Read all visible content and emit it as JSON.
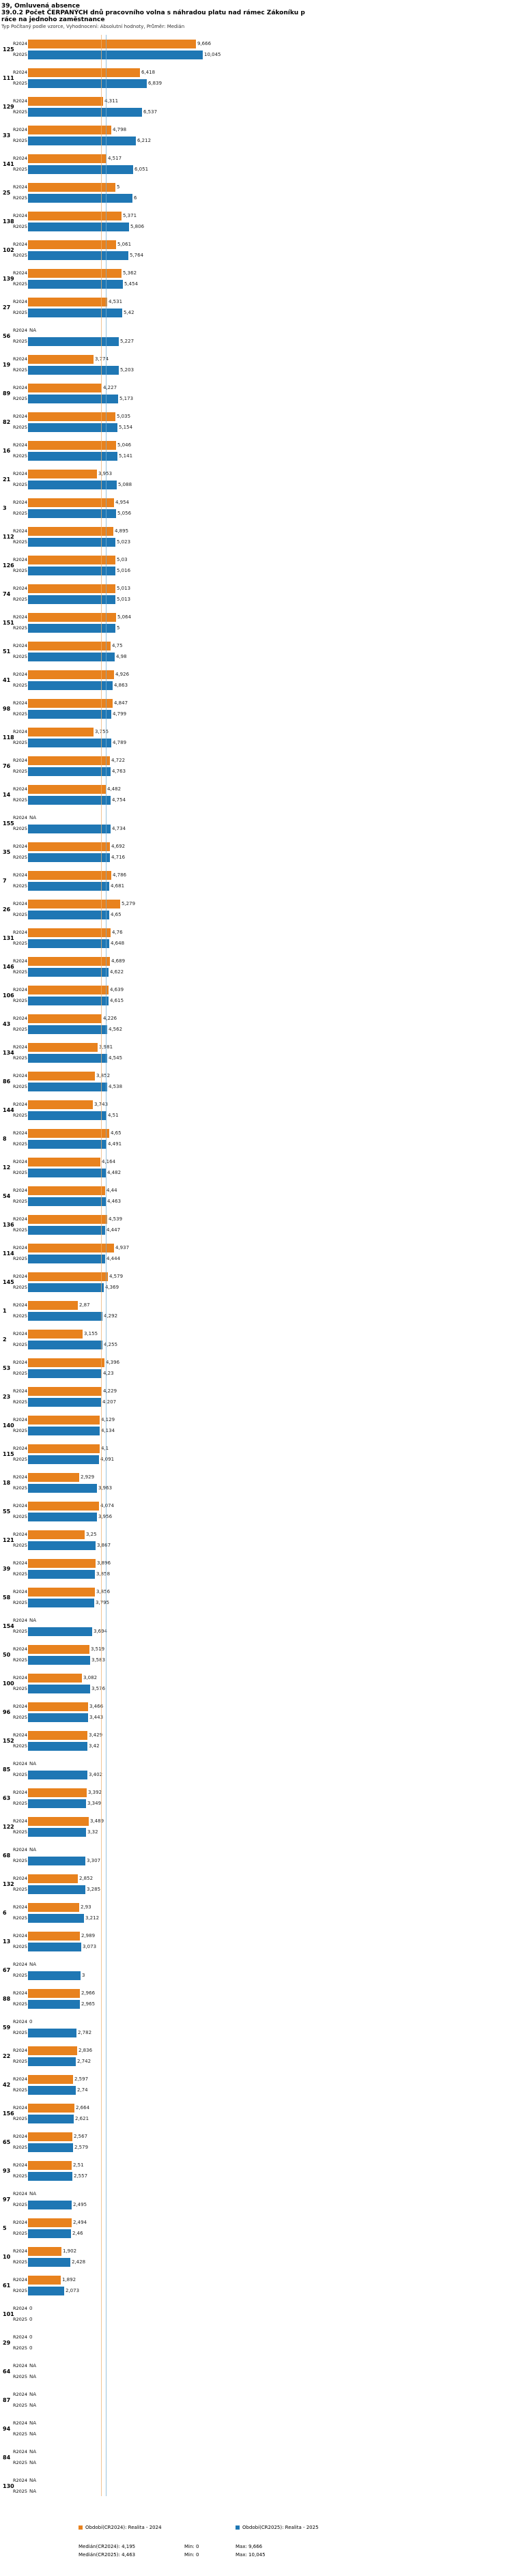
{
  "header": {
    "line1": "39, Omluvená absence",
    "line2": "39.0.2 Počet ČERPANÝCH dnů pracovního volna s náhradou platu nad rámec Zákoníku p",
    "line3": "ráce na jednoho zaměstnance",
    "subtitle": "Typ Počítaný podle vzorce, Vyhodnocení: Absolutní hodnoty, Průměr: Medián"
  },
  "chart_data": {
    "type": "bar",
    "orientation": "horizontal",
    "title": "39.0.2 Počet ČERPANÝCH dnů pracovního volna s náhradou platu nad rámec Zákoníku práce na jednoho zaměstnance",
    "xlabel": "",
    "ylabel": "",
    "xlim": [
      0,
      10.045
    ],
    "grid": false,
    "legend_position": "bottom",
    "series_labels": [
      "R2024",
      "R2025"
    ],
    "colors": {
      "r2024": "#e8821e",
      "r2025": "#1f77b4",
      "median_2024": "#eeb173",
      "median_2025": "#79aed2"
    },
    "medians": {
      "r2024": "4,195",
      "r2025": "4,463"
    },
    "mins": {
      "r2024": "0",
      "r2025": "0"
    },
    "maxs": {
      "r2024": "9,666",
      "r2025": "10,045"
    },
    "na_text": "NA",
    "groups": [
      {
        "category": "125",
        "r2024": "9,666",
        "r2025": "10,045"
      },
      {
        "category": "111",
        "r2024": "6,418",
        "r2025": "6,839"
      },
      {
        "category": "129",
        "r2024": "4,311",
        "r2025": "6,537"
      },
      {
        "category": "33",
        "r2024": "4,798",
        "r2025": "6,212"
      },
      {
        "category": "141",
        "r2024": "4,517",
        "r2025": "6,051"
      },
      {
        "category": "25",
        "r2024": "5",
        "r2025": "6"
      },
      {
        "category": "138",
        "r2024": "5,371",
        "r2025": "5,806"
      },
      {
        "category": "102",
        "r2024": "5,061",
        "r2025": "5,764"
      },
      {
        "category": "139",
        "r2024": "5,362",
        "r2025": "5,454"
      },
      {
        "category": "27",
        "r2024": "4,531",
        "r2025": "5,42"
      },
      {
        "category": "56",
        "r2024": "NA",
        "r2025": "5,227"
      },
      {
        "category": "19",
        "r2024": "3,774",
        "r2025": "5,203"
      },
      {
        "category": "89",
        "r2024": "4,227",
        "r2025": "5,173"
      },
      {
        "category": "82",
        "r2024": "5,035",
        "r2025": "5,154"
      },
      {
        "category": "16",
        "r2024": "5,046",
        "r2025": "5,141"
      },
      {
        "category": "21",
        "r2024": "3,953",
        "r2025": "5,088"
      },
      {
        "category": "3",
        "r2024": "4,954",
        "r2025": "5,056"
      },
      {
        "category": "112",
        "r2024": "4,895",
        "r2025": "5,023"
      },
      {
        "category": "126",
        "r2024": "5,03",
        "r2025": "5,016"
      },
      {
        "category": "74",
        "r2024": "5,013",
        "r2025": "5,013"
      },
      {
        "category": "151",
        "r2024": "5,064",
        "r2025": "5"
      },
      {
        "category": "51",
        "r2024": "4,75",
        "r2025": "4,98"
      },
      {
        "category": "41",
        "r2024": "4,926",
        "r2025": "4,863"
      },
      {
        "category": "98",
        "r2024": "4,847",
        "r2025": "4,799"
      },
      {
        "category": "118",
        "r2024": "3,755",
        "r2025": "4,789"
      },
      {
        "category": "76",
        "r2024": "4,722",
        "r2025": "4,763"
      },
      {
        "category": "14",
        "r2024": "4,482",
        "r2025": "4,754"
      },
      {
        "category": "155",
        "r2024": "NA",
        "r2025": "4,734"
      },
      {
        "category": "35",
        "r2024": "4,692",
        "r2025": "4,716"
      },
      {
        "category": "7",
        "r2024": "4,786",
        "r2025": "4,681"
      },
      {
        "category": "26",
        "r2024": "5,279",
        "r2025": "4,65"
      },
      {
        "category": "131",
        "r2024": "4,76",
        "r2025": "4,648"
      },
      {
        "category": "146",
        "r2024": "4,689",
        "r2025": "4,622"
      },
      {
        "category": "106",
        "r2024": "4,639",
        "r2025": "4,615"
      },
      {
        "category": "43",
        "r2024": "4,226",
        "r2025": "4,562"
      },
      {
        "category": "134",
        "r2024": "3,981",
        "r2025": "4,545"
      },
      {
        "category": "86",
        "r2024": "3,852",
        "r2025": "4,538"
      },
      {
        "category": "144",
        "r2024": "3,743",
        "r2025": "4,51"
      },
      {
        "category": "8",
        "r2024": "4,65",
        "r2025": "4,491"
      },
      {
        "category": "12",
        "r2024": "4,164",
        "r2025": "4,482"
      },
      {
        "category": "54",
        "r2024": "4,44",
        "r2025": "4,463"
      },
      {
        "category": "136",
        "r2024": "4,539",
        "r2025": "4,447"
      },
      {
        "category": "114",
        "r2024": "4,937",
        "r2025": "4,444"
      },
      {
        "category": "145",
        "r2024": "4,579",
        "r2025": "4,369"
      },
      {
        "category": "1",
        "r2024": "2,87",
        "r2025": "4,292"
      },
      {
        "category": "2",
        "r2024": "3,155",
        "r2025": "4,255"
      },
      {
        "category": "53",
        "r2024": "4,396",
        "r2025": "4,23"
      },
      {
        "category": "23",
        "r2024": "4,229",
        "r2025": "4,207"
      },
      {
        "category": "140",
        "r2024": "4,129",
        "r2025": "4,134"
      },
      {
        "category": "115",
        "r2024": "4,1",
        "r2025": "4,091"
      },
      {
        "category": "18",
        "r2024": "2,929",
        "r2025": "3,963"
      },
      {
        "category": "55",
        "r2024": "4,074",
        "r2025": "3,956"
      },
      {
        "category": "121",
        "r2024": "3,25",
        "r2025": "3,867"
      },
      {
        "category": "39",
        "r2024": "3,896",
        "r2025": "3,858"
      },
      {
        "category": "58",
        "r2024": "3,856",
        "r2025": "3,795"
      },
      {
        "category": "154",
        "r2024": "NA",
        "r2025": "3,694"
      },
      {
        "category": "50",
        "r2024": "3,519",
        "r2025": "3,583"
      },
      {
        "category": "100",
        "r2024": "3,082",
        "r2025": "3,576"
      },
      {
        "category": "96",
        "r2024": "3,466",
        "r2025": "3,443"
      },
      {
        "category": "152",
        "r2024": "3,429",
        "r2025": "3,42"
      },
      {
        "category": "85",
        "r2024": "NA",
        "r2025": "3,402"
      },
      {
        "category": "63",
        "r2024": "3,392",
        "r2025": "3,349"
      },
      {
        "category": "122",
        "r2024": "3,489",
        "r2025": "3,32"
      },
      {
        "category": "68",
        "r2024": "NA",
        "r2025": "3,307"
      },
      {
        "category": "132",
        "r2024": "2,852",
        "r2025": "3,285"
      },
      {
        "category": "6",
        "r2024": "2,93",
        "r2025": "3,212"
      },
      {
        "category": "13",
        "r2024": "2,989",
        "r2025": "3,073"
      },
      {
        "category": "67",
        "r2024": "NA",
        "r2025": "3"
      },
      {
        "category": "88",
        "r2024": "2,966",
        "r2025": "2,965"
      },
      {
        "category": "59",
        "r2024": "0",
        "r2025": "2,782"
      },
      {
        "category": "22",
        "r2024": "2,836",
        "r2025": "2,742"
      },
      {
        "category": "42",
        "r2024": "2,597",
        "r2025": "2,74"
      },
      {
        "category": "156",
        "r2024": "2,664",
        "r2025": "2,621"
      },
      {
        "category": "65",
        "r2024": "2,567",
        "r2025": "2,579"
      },
      {
        "category": "93",
        "r2024": "2,51",
        "r2025": "2,557"
      },
      {
        "category": "97",
        "r2024": "NA",
        "r2025": "2,495"
      },
      {
        "category": "5",
        "r2024": "2,494",
        "r2025": "2,46"
      },
      {
        "category": "10",
        "r2024": "1,902",
        "r2025": "2,428"
      },
      {
        "category": "61",
        "r2024": "1,892",
        "r2025": "2,073"
      },
      {
        "category": "101",
        "r2024": "0",
        "r2025": "0"
      },
      {
        "category": "29",
        "r2024": "0",
        "r2025": "0"
      },
      {
        "category": "64",
        "r2024": "NA",
        "r2025": "NA"
      },
      {
        "category": "87",
        "r2024": "NA",
        "r2025": "NA"
      },
      {
        "category": "94",
        "r2024": "NA",
        "r2025": "NA"
      },
      {
        "category": "84",
        "r2024": "NA",
        "r2025": "NA"
      },
      {
        "category": "130",
        "r2024": "NA",
        "r2025": "NA"
      }
    ]
  },
  "footer": {
    "period_2024": "Období(CR2024): Realita - 2024",
    "period_2025": "Období(CR2025): Realita - 2025",
    "median_2024": "Medián(CR2024): 4,195",
    "min_2024": "Min: 0",
    "max_2024": "Max: 9,666",
    "median_2025": "Medián(CR2025): 4,463",
    "min_2025": "Min: 0",
    "max_2025": "Max: 10,045"
  }
}
